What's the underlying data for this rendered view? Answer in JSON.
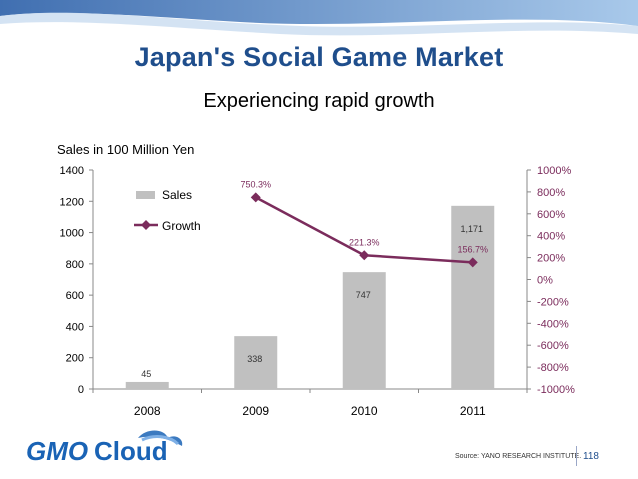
{
  "slide": {
    "title": "Japan's Social Game Market",
    "subtitle": "Experiencing rapid growth",
    "source": "Source: YANO RESEARCH INSTITUTE.",
    "page_number": "118",
    "logo": "GMO Cloud",
    "colors": {
      "title": "#1f4e8c",
      "bar": "#c0c0c0",
      "line": "#7b2c5c",
      "logo_blue": "#1a63b5"
    }
  },
  "chart_data": {
    "type": "bar",
    "title": "",
    "categories": [
      "2008",
      "2009",
      "2010",
      "2011"
    ],
    "ylabel": "Sales in 100 Million Yen",
    "ylim": [
      0,
      1400
    ],
    "yticks": [
      0,
      200,
      400,
      600,
      800,
      1000,
      1200,
      1400
    ],
    "y2lim": [
      -1000,
      1000
    ],
    "y2ticks": [
      "1000%",
      "800%",
      "600%",
      "400%",
      "200%",
      "0%",
      "-200%",
      "-400%",
      "-600%",
      "-800%",
      "-1000%"
    ],
    "legend_position": "top-left",
    "grid": false,
    "series": [
      {
        "name": "Sales",
        "type": "bar",
        "axis": "left",
        "values": [
          45,
          338,
          747,
          1171
        ],
        "labels": [
          "45",
          "338",
          "747",
          "1,171"
        ]
      },
      {
        "name": "Growth",
        "type": "line",
        "axis": "right",
        "values": [
          null,
          750.3,
          221.3,
          156.7
        ],
        "labels": [
          "",
          "750.3%",
          "221.3%",
          "156.7%"
        ]
      }
    ]
  }
}
